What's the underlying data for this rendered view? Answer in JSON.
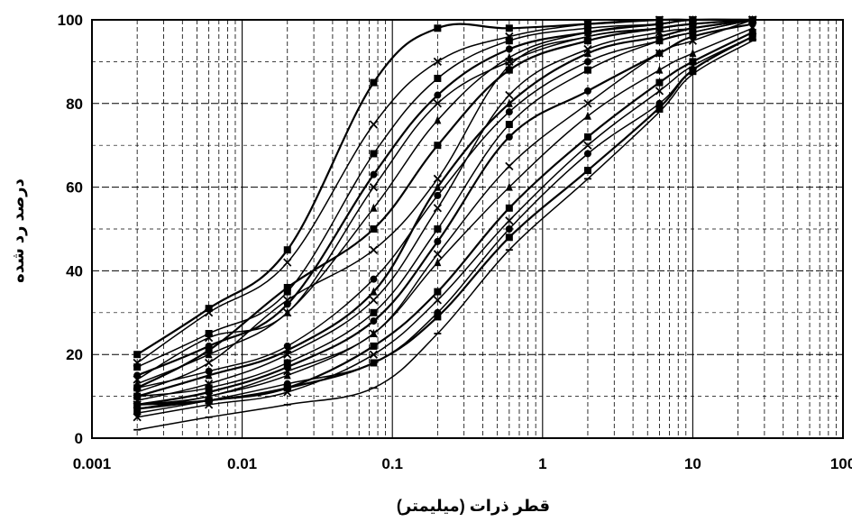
{
  "chart_data": {
    "type": "line",
    "title": "",
    "xlabel": "قطر ذرات (میلیمتر)",
    "ylabel": "درصد رد شده",
    "xscale": "log",
    "xlim": [
      0.001,
      100
    ],
    "ylim": [
      0,
      100
    ],
    "x_ticks": [
      0.001,
      0.01,
      0.1,
      1,
      10,
      100
    ],
    "x_tick_labels": [
      "0.001",
      "0.01",
      "0.1",
      "1",
      "10",
      "100"
    ],
    "y_ticks": [
      0,
      20,
      40,
      60,
      80,
      100
    ],
    "y_tick_labels": [
      "0",
      "20",
      "40",
      "60",
      "80",
      "100"
    ],
    "grid": "log-minor",
    "legend": "none",
    "x": [
      0.002,
      0.006,
      0.02,
      0.075,
      0.2,
      0.6,
      2,
      6,
      10,
      25
    ],
    "series": [
      {
        "marker": "square",
        "values": [
          20,
          31,
          45,
          85,
          98,
          98,
          99,
          100,
          100,
          100
        ]
      },
      {
        "marker": "x",
        "values": [
          18,
          30,
          42,
          75,
          90,
          96,
          99,
          100,
          100,
          100
        ]
      },
      {
        "marker": "square",
        "values": [
          17,
          25,
          35,
          68,
          86,
          95,
          98,
          99,
          100,
          100
        ]
      },
      {
        "marker": "circle",
        "values": [
          15,
          22,
          32,
          63,
          82,
          93,
          97,
          99,
          100,
          100
        ]
      },
      {
        "marker": "x",
        "values": [
          14,
          24,
          30,
          60,
          80,
          90,
          96,
          98,
          99,
          100
        ]
      },
      {
        "marker": "triangle",
        "values": [
          13,
          20,
          30,
          55,
          76,
          91,
          97,
          99,
          100,
          100
        ]
      },
      {
        "marker": "square",
        "values": [
          12,
          21,
          36,
          50,
          70,
          88,
          95,
          98,
          99,
          100
        ]
      },
      {
        "marker": "x",
        "values": [
          11,
          18,
          33,
          45,
          62,
          89,
          96,
          98,
          99,
          100
        ]
      },
      {
        "marker": "circle",
        "values": [
          12,
          16,
          22,
          38,
          58,
          78,
          90,
          95,
          97,
          100
        ]
      },
      {
        "marker": "triangle",
        "values": [
          10,
          15,
          21,
          35,
          60,
          80,
          92,
          96,
          98,
          100
        ]
      },
      {
        "marker": "x",
        "values": [
          9,
          13,
          20,
          33,
          55,
          82,
          93,
          97,
          98,
          100
        ]
      },
      {
        "marker": "square",
        "values": [
          10,
          12,
          18,
          30,
          50,
          75,
          88,
          95,
          97,
          100
        ]
      },
      {
        "marker": "circle",
        "values": [
          8,
          11,
          17,
          28,
          47,
          72,
          83,
          92,
          96,
          99
        ]
      },
      {
        "marker": "x",
        "values": [
          8,
          10,
          16,
          25,
          44,
          65,
          80,
          92,
          95,
          100
        ]
      },
      {
        "marker": "triangle",
        "values": [
          7,
          10,
          15,
          25,
          42,
          60,
          77,
          88,
          92,
          98
        ]
      },
      {
        "marker": "square",
        "values": [
          7,
          9,
          12,
          22,
          35,
          55,
          72,
          85,
          90,
          97
        ]
      },
      {
        "marker": "x",
        "values": [
          5,
          8,
          11,
          20,
          33,
          52,
          70,
          83,
          89,
          96
        ]
      },
      {
        "marker": "circle",
        "values": [
          6,
          9,
          13,
          18,
          30,
          50,
          68,
          80,
          88,
          96
        ]
      },
      {
        "marker": "square",
        "values": [
          8,
          9,
          12,
          18,
          29,
          48,
          64,
          79,
          88,
          96
        ]
      },
      {
        "marker": "line",
        "values": [
          2,
          5,
          8,
          12,
          25,
          45,
          62,
          78,
          87,
          95
        ]
      }
    ]
  }
}
